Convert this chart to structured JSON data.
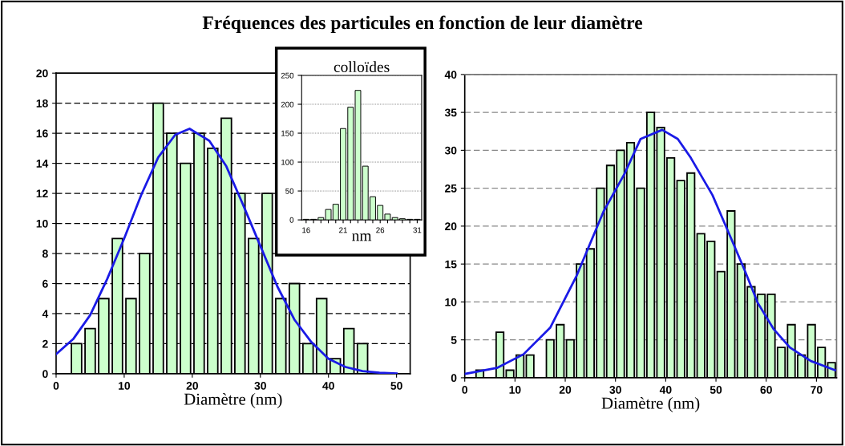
{
  "chart_data": [
    {
      "type": "histogram",
      "title": "Fréquences des particules en fonction de leur diamètre",
      "xlabel": "Diamètre (nm)",
      "xlim": [
        0,
        52
      ],
      "xticks": [
        0,
        10,
        20,
        30,
        40,
        50
      ],
      "ylim": [
        0,
        20
      ],
      "yticks": [
        0,
        2,
        4,
        6,
        8,
        10,
        12,
        14,
        16,
        18,
        20
      ],
      "grid": "y",
      "series": [
        {
          "type": "histogram",
          "color": "#ccffcc",
          "bins": [
            2,
            4,
            6,
            8,
            10,
            12,
            14,
            16,
            18,
            20,
            22,
            24,
            26,
            28,
            30,
            32,
            34,
            36,
            38,
            40,
            42,
            44,
            46
          ],
          "values": [
            2,
            3,
            5,
            9,
            5,
            8,
            18,
            16,
            14,
            16,
            15,
            17,
            12,
            9,
            12,
            5,
            6,
            2,
            5,
            1,
            3,
            2
          ]
        },
        {
          "type": "line",
          "color": "#1a1ae6",
          "x": [
            0,
            2.5,
            5,
            7.5,
            10,
            12.5,
            15,
            17.5,
            19.6,
            22.5,
            25,
            27.5,
            30,
            32.5,
            35,
            37.5,
            40,
            42.5,
            45,
            47.5,
            50
          ],
          "values": [
            1.3,
            2.3,
            3.9,
            6.3,
            9.0,
            11.9,
            14.4,
            15.9,
            16.3,
            15.5,
            13.8,
            11.2,
            8.5,
            5.8,
            3.6,
            2.1,
            1.0,
            0.45,
            0.18,
            0.07,
            0.02
          ]
        }
      ]
    },
    {
      "type": "bar",
      "title": "colloïdes",
      "xlabel": "nm",
      "categories": [
        "16",
        null,
        null,
        null,
        null,
        "21",
        null,
        null,
        null,
        null,
        "26",
        null,
        null,
        null,
        null,
        "31"
      ],
      "ylim": [
        0,
        250
      ],
      "yticks": [
        0,
        50,
        100,
        150,
        200,
        250
      ],
      "grid": "y",
      "series": [
        {
          "type": "bar",
          "color": "#ccffcc",
          "values": [
            1,
            1,
            4,
            18,
            27,
            158,
            195,
            224,
            93,
            40,
            25,
            10,
            4,
            2,
            1,
            1
          ]
        }
      ]
    },
    {
      "type": "histogram",
      "xlabel": "Diamètre (nm)",
      "xlim": [
        0,
        74
      ],
      "xticks": [
        0,
        10,
        20,
        30,
        40,
        50,
        60,
        70
      ],
      "ylim": [
        0,
        40
      ],
      "yticks": [
        0,
        5,
        10,
        15,
        20,
        25,
        30,
        35,
        40
      ],
      "grid": "y",
      "series": [
        {
          "type": "histogram",
          "color": "#ccffcc",
          "bins": [
            0,
            2,
            4,
            6,
            8,
            10,
            12,
            14,
            16,
            18,
            20,
            22,
            24,
            26,
            28,
            30,
            32,
            34,
            36,
            38,
            40,
            42,
            44,
            46,
            48,
            50,
            52,
            54,
            56,
            58,
            60,
            62,
            64,
            66,
            68,
            70,
            72,
            74
          ],
          "values": [
            0,
            1,
            0,
            6,
            1,
            3,
            3,
            0,
            5,
            7,
            5,
            15,
            17,
            25,
            28,
            30,
            31,
            25,
            35,
            33,
            29,
            26,
            27,
            19,
            18,
            14,
            22,
            15,
            12,
            11,
            11,
            4,
            7,
            3,
            7,
            4,
            2
          ]
        },
        {
          "type": "line",
          "color": "#1a1ae6",
          "x": [
            0,
            6.4,
            11.7,
            17.0,
            22.3,
            27.6,
            31.8,
            35,
            39.3,
            42.4,
            45.0,
            49.3,
            53.0,
            55.7,
            58.3,
            61.5,
            64.7,
            68.9,
            73.7
          ],
          "values": [
            0.5,
            1.3,
            3.1,
            6.6,
            13.5,
            21.9,
            26.9,
            31.5,
            32.7,
            31.5,
            29.0,
            24.1,
            18.4,
            14.2,
            9.9,
            6.4,
            4.0,
            2.2,
            1.0
          ]
        }
      ]
    }
  ]
}
